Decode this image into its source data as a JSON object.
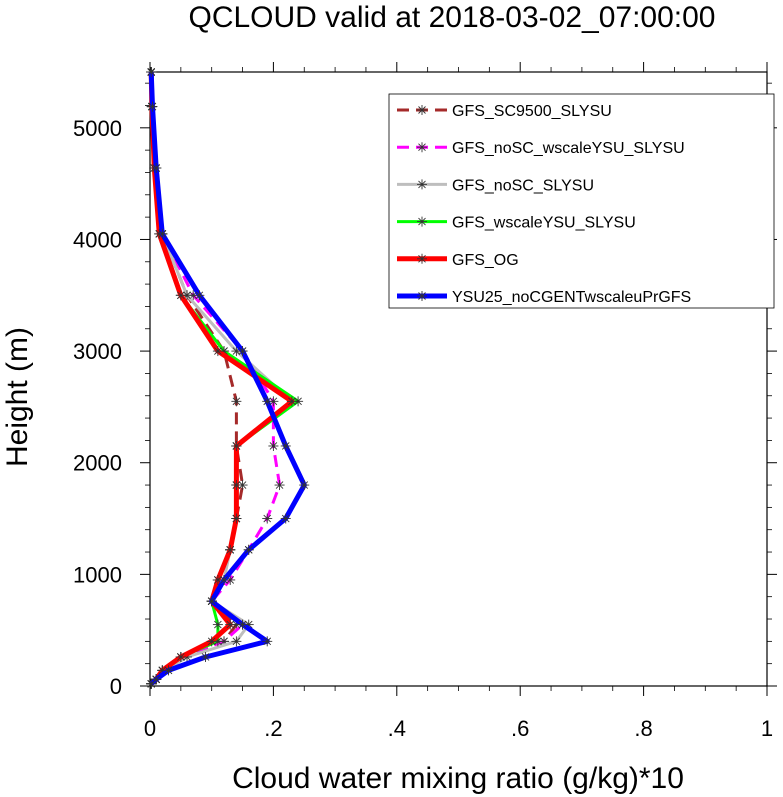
{
  "chart_data": {
    "type": "line",
    "title": "QCLOUD valid at 2018-03-02_07:00:00",
    "xlabel": "Cloud water mixing ratio (g/kg)*10",
    "ylabel": "Height (m)",
    "xlim": [
      0,
      1
    ],
    "ylim": [
      0,
      5500
    ],
    "x_ticks": [
      0,
      0.2,
      0.4,
      0.6,
      0.8,
      1
    ],
    "x_tick_labels": [
      "0",
      ".2",
      ".4",
      ".6",
      ".8",
      "1"
    ],
    "y_ticks": [
      0,
      1000,
      2000,
      3000,
      4000,
      5000
    ],
    "y_tick_labels": [
      "0",
      "1000",
      "2000",
      "3000",
      "4000",
      "5000"
    ],
    "grid": false,
    "legend_position": "top-right",
    "series": [
      {
        "name": "GFS_SC9500_SLYSU",
        "color": "#a52a2a",
        "dash": "dashed",
        "points": [
          [
            0.002,
            20
          ],
          [
            0.01,
            60
          ],
          [
            0.02,
            140
          ],
          [
            0.05,
            260
          ],
          [
            0.12,
            400
          ],
          [
            0.14,
            550
          ],
          [
            0.1,
            760
          ],
          [
            0.11,
            950
          ],
          [
            0.13,
            1220
          ],
          [
            0.14,
            1500
          ],
          [
            0.15,
            1800
          ],
          [
            0.14,
            2150
          ],
          [
            0.14,
            2550
          ],
          [
            0.12,
            3000
          ],
          [
            0.06,
            3500
          ],
          [
            0.02,
            4050
          ],
          [
            0.01,
            4640
          ],
          [
            0.003,
            5190
          ],
          [
            0.002,
            5500
          ]
        ]
      },
      {
        "name": "GFS_noSC_wscaleYSU_SLYSU",
        "color": "#ff00ff",
        "dash": "dashed",
        "points": [
          [
            0.002,
            20
          ],
          [
            0.01,
            60
          ],
          [
            0.02,
            140
          ],
          [
            0.05,
            260
          ],
          [
            0.12,
            400
          ],
          [
            0.15,
            550
          ],
          [
            0.1,
            760
          ],
          [
            0.13,
            950
          ],
          [
            0.16,
            1220
          ],
          [
            0.19,
            1500
          ],
          [
            0.21,
            1800
          ],
          [
            0.2,
            2150
          ],
          [
            0.2,
            2550
          ],
          [
            0.15,
            3000
          ],
          [
            0.07,
            3500
          ],
          [
            0.02,
            4050
          ],
          [
            0.01,
            4640
          ],
          [
            0.003,
            5190
          ],
          [
            0.002,
            5500
          ]
        ]
      },
      {
        "name": "GFS_noSC_SLYSU",
        "color": "#bebebe",
        "dash": "solid",
        "points": [
          [
            0.002,
            20
          ],
          [
            0.01,
            60
          ],
          [
            0.025,
            140
          ],
          [
            0.06,
            260
          ],
          [
            0.14,
            400
          ],
          [
            0.16,
            550
          ],
          [
            0.1,
            760
          ],
          [
            0.12,
            950
          ],
          [
            0.13,
            1220
          ],
          [
            0.14,
            1500
          ],
          [
            0.14,
            1800
          ],
          [
            0.14,
            2150
          ],
          [
            0.23,
            2550
          ],
          [
            0.14,
            3000
          ],
          [
            0.06,
            3500
          ],
          [
            0.02,
            4050
          ],
          [
            0.01,
            4640
          ],
          [
            0.003,
            5190
          ],
          [
            0.002,
            5500
          ]
        ]
      },
      {
        "name": "GFS_wscaleYSU_SLYSU",
        "color": "#00ff00",
        "dash": "solid",
        "points": [
          [
            0.002,
            20
          ],
          [
            0.01,
            60
          ],
          [
            0.02,
            140
          ],
          [
            0.05,
            260
          ],
          [
            0.11,
            400
          ],
          [
            0.11,
            550
          ],
          [
            0.1,
            760
          ],
          [
            0.11,
            950
          ],
          [
            0.13,
            1220
          ],
          [
            0.14,
            1500
          ],
          [
            0.14,
            1800
          ],
          [
            0.14,
            2150
          ],
          [
            0.24,
            2550
          ],
          [
            0.12,
            3000
          ],
          [
            0.05,
            3500
          ],
          [
            0.015,
            4050
          ],
          [
            0.007,
            4640
          ],
          [
            0.003,
            5190
          ],
          [
            0.002,
            5500
          ]
        ]
      },
      {
        "name": "GFS_OG",
        "color": "#ff0000",
        "dash": "solid",
        "points": [
          [
            0.002,
            20
          ],
          [
            0.01,
            60
          ],
          [
            0.02,
            140
          ],
          [
            0.05,
            260
          ],
          [
            0.1,
            400
          ],
          [
            0.13,
            550
          ],
          [
            0.1,
            760
          ],
          [
            0.11,
            950
          ],
          [
            0.13,
            1220
          ],
          [
            0.14,
            1500
          ],
          [
            0.14,
            1800
          ],
          [
            0.14,
            2150
          ],
          [
            0.23,
            2550
          ],
          [
            0.11,
            3000
          ],
          [
            0.05,
            3500
          ],
          [
            0.015,
            4050
          ],
          [
            0.007,
            4640
          ],
          [
            0.003,
            5190
          ],
          [
            0.002,
            5500
          ]
        ]
      },
      {
        "name": "YSU25_noCGENTwscaleuPrGFS",
        "color": "#0000ff",
        "dash": "solid",
        "points": [
          [
            0.002,
            20
          ],
          [
            0.01,
            60
          ],
          [
            0.03,
            140
          ],
          [
            0.09,
            260
          ],
          [
            0.19,
            400
          ],
          [
            0.15,
            550
          ],
          [
            0.1,
            760
          ],
          [
            0.12,
            950
          ],
          [
            0.16,
            1220
          ],
          [
            0.22,
            1500
          ],
          [
            0.25,
            1800
          ],
          [
            0.22,
            2150
          ],
          [
            0.19,
            2550
          ],
          [
            0.15,
            3000
          ],
          [
            0.08,
            3500
          ],
          [
            0.02,
            4050
          ],
          [
            0.01,
            4640
          ],
          [
            0.004,
            5190
          ],
          [
            0.002,
            5500
          ]
        ]
      }
    ]
  }
}
